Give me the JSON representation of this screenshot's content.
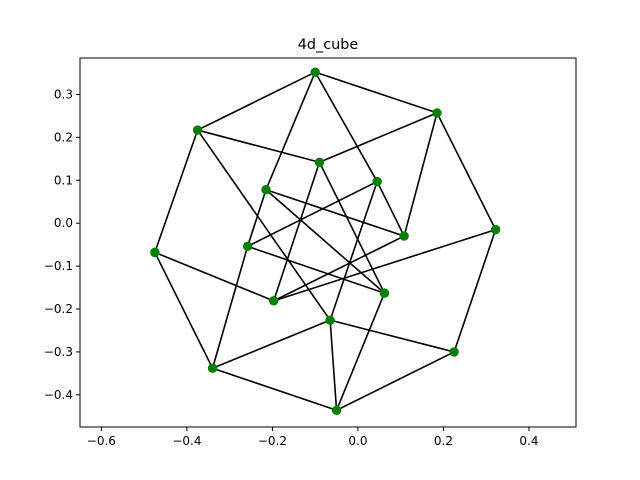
{
  "chart_data": {
    "type": "scatter",
    "title": "4d_cube",
    "xlabel": "",
    "ylabel": "",
    "xlim": [
      -0.65,
      0.51
    ],
    "ylim": [
      -0.475,
      0.385
    ],
    "xticks": [
      -0.6,
      -0.4,
      -0.2,
      0.0,
      0.2,
      0.4
    ],
    "xtick_labels": [
      "−0.6",
      "−0.4",
      "−0.2",
      "0.0",
      "0.2",
      "0.4"
    ],
    "yticks": [
      0.3,
      0.2,
      0.1,
      0.0,
      -0.1,
      -0.2,
      -0.3,
      -0.4
    ],
    "ytick_labels": [
      "0.3",
      "0.2",
      "0.1",
      "0.0",
      "−0.1",
      "−0.2",
      "−0.3",
      "−0.4"
    ],
    "grid": false,
    "marker_color": "#008000",
    "line_color": "#000000",
    "vertices": [
      {
        "x": -0.1,
        "y": 0.352
      },
      {
        "x": 0.185,
        "y": 0.257
      },
      {
        "x": -0.375,
        "y": 0.217
      },
      {
        "x": -0.09,
        "y": 0.142
      },
      {
        "x": 0.045,
        "y": 0.097
      },
      {
        "x": -0.215,
        "y": 0.078
      },
      {
        "x": 0.322,
        "y": -0.015
      },
      {
        "x": 0.108,
        "y": -0.03
      },
      {
        "x": -0.258,
        "y": -0.054
      },
      {
        "x": -0.475,
        "y": -0.068
      },
      {
        "x": 0.062,
        "y": -0.163
      },
      {
        "x": -0.197,
        "y": -0.181
      },
      {
        "x": -0.065,
        "y": -0.226
      },
      {
        "x": 0.225,
        "y": -0.3
      },
      {
        "x": -0.34,
        "y": -0.338
      },
      {
        "x": -0.05,
        "y": -0.436
      }
    ],
    "edges": [
      [
        0,
        1
      ],
      [
        0,
        2
      ],
      [
        0,
        5
      ],
      [
        0,
        4
      ],
      [
        1,
        3
      ],
      [
        1,
        6
      ],
      [
        1,
        7
      ],
      [
        2,
        3
      ],
      [
        2,
        9
      ],
      [
        2,
        12
      ],
      [
        3,
        11
      ],
      [
        3,
        10
      ],
      [
        4,
        7
      ],
      [
        4,
        8
      ],
      [
        4,
        12
      ],
      [
        5,
        8
      ],
      [
        5,
        7
      ],
      [
        5,
        10
      ],
      [
        6,
        13
      ],
      [
        6,
        11
      ],
      [
        7,
        11
      ],
      [
        8,
        14
      ],
      [
        8,
        10
      ],
      [
        9,
        14
      ],
      [
        9,
        11
      ],
      [
        10,
        15
      ],
      [
        12,
        13
      ],
      [
        12,
        14
      ],
      [
        12,
        15
      ],
      [
        13,
        15
      ],
      [
        14,
        15
      ]
    ]
  }
}
